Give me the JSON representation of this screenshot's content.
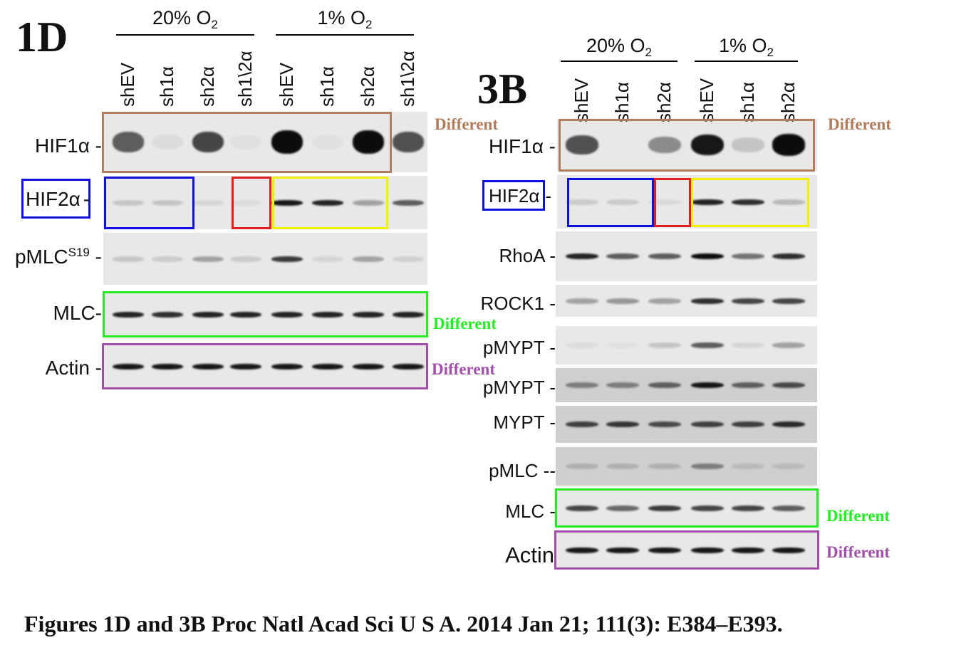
{
  "colors": {
    "brown": "#b07c5c",
    "blue": "#1010e0",
    "red": "#e02020",
    "yellow": "#f0f000",
    "green": "#22ee22",
    "purple": "#a050a8"
  },
  "fig1d": {
    "label": "1D",
    "conditions": [
      {
        "main": "20% O",
        "sub": "2"
      },
      {
        "main": "1% O",
        "sub": "2"
      }
    ],
    "lanes": [
      "shEV",
      "sh1α",
      "sh2α",
      "sh1\\2α",
      "shEV",
      "sh1α",
      "sh2α",
      "sh1\\2α"
    ],
    "blots": [
      {
        "name": "HIF1α -",
        "bands": [
          0.6,
          0.05,
          0.7,
          0.03,
          0.95,
          0.03,
          0.95,
          0.65
        ]
      },
      {
        "name": "HIF2α",
        "suffix": "-",
        "bands": [
          0.15,
          0.15,
          0.08,
          0.05,
          0.9,
          0.85,
          0.3,
          0.6
        ]
      },
      {
        "name": "pMLC",
        "sup": "S19",
        "suffix": " -",
        "bands": [
          0.15,
          0.12,
          0.3,
          0.12,
          0.75,
          0.08,
          0.3,
          0.1
        ]
      },
      {
        "name": "MLC-",
        "bands": [
          0.85,
          0.8,
          0.85,
          0.85,
          0.85,
          0.85,
          0.85,
          0.85
        ]
      },
      {
        "name": "Actin -",
        "bands": [
          0.9,
          0.9,
          0.9,
          0.9,
          0.9,
          0.9,
          0.9,
          0.9
        ]
      }
    ],
    "annotations": {
      "hif1a": "Different",
      "mlc": "Different",
      "actin": "Different"
    }
  },
  "fig3b": {
    "label": "3B",
    "conditions": [
      {
        "main": "20% O",
        "sub": "2"
      },
      {
        "main": "1% O",
        "sub": "2"
      }
    ],
    "lanes": [
      "shEV",
      "sh1α",
      "sh2α",
      "shEV",
      "sh1α",
      "sh2α"
    ],
    "blots": [
      {
        "name": "HIF1α -",
        "bands": [
          0.65,
          0,
          0.4,
          0.9,
          0.15,
          0.95
        ]
      },
      {
        "name": "HIF2α",
        "suffix": "-",
        "bands": [
          0.12,
          0.12,
          0.06,
          0.85,
          0.8,
          0.2
        ]
      },
      {
        "name": "RhoA -",
        "bands": [
          0.85,
          0.6,
          0.6,
          0.95,
          0.5,
          0.8
        ]
      },
      {
        "name": "ROCK1 -",
        "bands": [
          0.3,
          0.35,
          0.3,
          0.8,
          0.7,
          0.7
        ]
      },
      {
        "name": "pMYPT -",
        "bands": [
          0.05,
          0.03,
          0.15,
          0.6,
          0.08,
          0.3
        ]
      },
      {
        "name": "pMYPT -",
        "bands": [
          0.4,
          0.4,
          0.55,
          0.9,
          0.55,
          0.65
        ]
      },
      {
        "name": "MYPT -",
        "bands": [
          0.7,
          0.75,
          0.65,
          0.7,
          0.7,
          0.8
        ]
      },
      {
        "name": "pMLC --",
        "bands": [
          0.15,
          0.15,
          0.15,
          0.4,
          0.1,
          0.1
        ]
      },
      {
        "name": "MLC -",
        "bands": [
          0.7,
          0.55,
          0.75,
          0.7,
          0.7,
          0.6
        ]
      },
      {
        "name": "Actin",
        "bands": [
          0.9,
          0.9,
          0.9,
          0.9,
          0.9,
          0.9
        ]
      }
    ],
    "annotations": {
      "hif1a": "Different",
      "mlc": "Different",
      "actin": "Different"
    }
  },
  "caption": "Figures 1D and 3B Proc Natl Acad Sci U S A. 2014 Jan 21; 111(3): E384–E393."
}
